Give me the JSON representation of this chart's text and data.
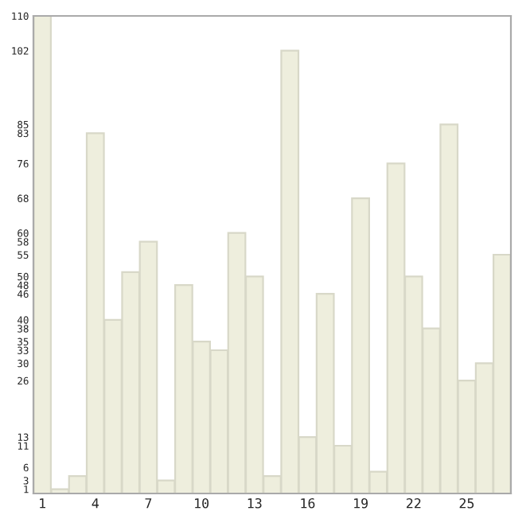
{
  "chart_data": {
    "type": "bar",
    "categories": [
      "1",
      null,
      null,
      "4",
      null,
      null,
      "7",
      null,
      null,
      "10",
      null,
      null,
      "13",
      null,
      null,
      "16",
      null,
      null,
      "19",
      null,
      null,
      "22",
      null,
      null,
      "25",
      null,
      null
    ],
    "values": [
      110,
      1,
      4,
      83,
      40,
      51,
      58,
      3,
      48,
      35,
      33,
      60,
      50,
      4,
      102,
      13,
      46,
      11,
      68,
      5,
      76,
      50,
      38,
      85,
      26,
      30,
      55
    ],
    "color": "#eeeedd",
    "ylim": [
      0,
      110
    ],
    "yticks": [
      1,
      3,
      6,
      11,
      13,
      26,
      30,
      33,
      35,
      38,
      40,
      46,
      48,
      50,
      55,
      58,
      60,
      68,
      76,
      83,
      85,
      102,
      110
    ],
    "grid": false
  }
}
